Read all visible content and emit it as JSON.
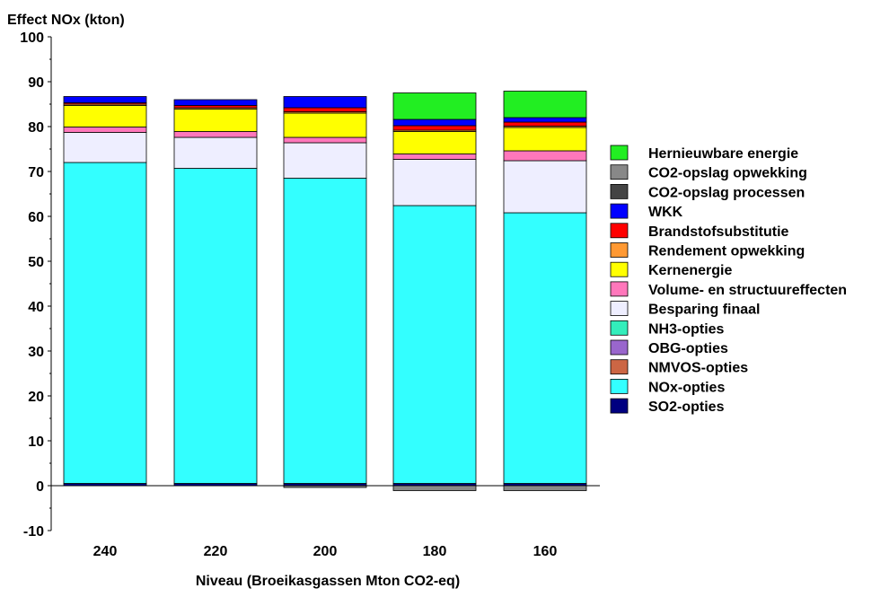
{
  "chart_data": {
    "type": "bar",
    "stacked": true,
    "ylabel": "Effect NOx (kton)",
    "xlabel": "Niveau (Broeikasgassen Mton CO2-eq)",
    "ylim": [
      -10,
      100
    ],
    "yticks": [
      "-10",
      "0",
      "10",
      "20",
      "30",
      "40",
      "50",
      "60",
      "70",
      "80",
      "90",
      "100"
    ],
    "categories": [
      "240",
      "220",
      "200",
      "180",
      "160"
    ],
    "legend_position": "right",
    "series": [
      {
        "name": "SO2-opties",
        "color": "#000080",
        "values": [
          0.5,
          0.5,
          0.5,
          0.5,
          0.5
        ]
      },
      {
        "name": "NOx-opties",
        "color": "#33FFFF",
        "values": [
          71.5,
          70.2,
          68.0,
          61.9,
          60.3
        ]
      },
      {
        "name": "NMVOS-opties",
        "color": "#CC6644",
        "values": [
          0,
          0,
          0,
          0,
          0
        ]
      },
      {
        "name": "OBG-opties",
        "color": "#9966CC",
        "values": [
          0,
          0,
          0,
          0,
          0
        ]
      },
      {
        "name": "NH3-opties",
        "color": "#33EEBB",
        "values": [
          0,
          0,
          0,
          0,
          0
        ]
      },
      {
        "name": "Besparing finaal",
        "color": "#EEEEFF",
        "values": [
          6.7,
          6.9,
          7.9,
          10.3,
          11.6
        ]
      },
      {
        "name": "Volume- en structuureffecten",
        "color": "#FF77BB",
        "values": [
          1.2,
          1.3,
          1.2,
          1.2,
          2.2
        ]
      },
      {
        "name": "Kernenergie",
        "color": "#FFFF00",
        "values": [
          4.8,
          5.0,
          5.4,
          5.0,
          5.2
        ]
      },
      {
        "name": "Rendement opwekking",
        "color": "#FF9933",
        "values": [
          0.3,
          0.3,
          0.3,
          0.3,
          0.3
        ]
      },
      {
        "name": "Brandstofsubstitutie",
        "color": "#FF0000",
        "values": [
          0.3,
          0.5,
          0.9,
          1.0,
          0.9
        ]
      },
      {
        "name": "WKK",
        "color": "#0000FF",
        "values": [
          1.4,
          1.3,
          2.5,
          1.4,
          1.0
        ]
      },
      {
        "name": "CO2-opslag processen",
        "color": "#444444",
        "values": [
          0,
          0,
          0,
          0,
          0
        ]
      },
      {
        "name": "CO2-opslag opwekking",
        "color": "#888888",
        "values": [
          0,
          0,
          -0.4,
          -1.1,
          -1.1
        ]
      },
      {
        "name": "Hernieuwbare energie",
        "color": "#22EE22",
        "values": [
          0,
          0,
          0,
          5.9,
          5.9
        ]
      }
    ]
  }
}
